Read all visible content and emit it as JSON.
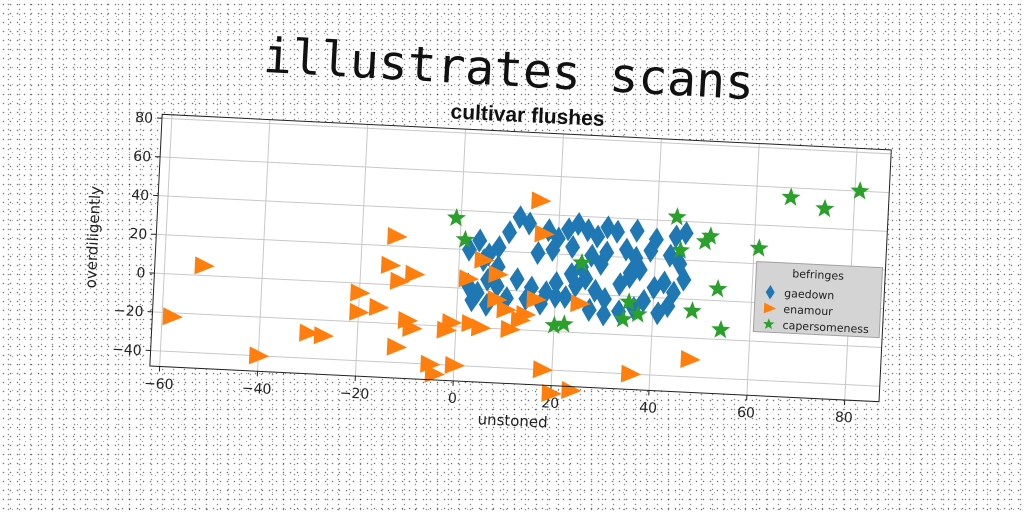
{
  "heading": "illustrates scans",
  "chart_data": {
    "type": "scatter",
    "title": "cultivar flushes",
    "xlabel": "unstoned",
    "ylabel": "overdiligently",
    "xlim": [
      -62,
      87
    ],
    "ylim": [
      -48,
      82
    ],
    "xticks": [
      -60,
      -40,
      -20,
      0,
      20,
      40,
      60,
      80
    ],
    "yticks": [
      -40,
      -20,
      0,
      20,
      40,
      60,
      80
    ],
    "xtick_labels": [
      "−60",
      "−40",
      "−20",
      "0",
      "20",
      "40",
      "60",
      "80"
    ],
    "ytick_labels": [
      "−40",
      "−20",
      "0",
      "20",
      "40",
      "60",
      "80"
    ],
    "grid": true,
    "legend": {
      "title": "befringes",
      "location": "right"
    },
    "series": [
      {
        "name": "gaedown",
        "color": "#1f77b4",
        "marker": "diamond",
        "points": [
          [
            2,
            20
          ],
          [
            4,
            25
          ],
          [
            6,
            18
          ],
          [
            8,
            22
          ],
          [
            10,
            30
          ],
          [
            12,
            38
          ],
          [
            14,
            35
          ],
          [
            18,
            32
          ],
          [
            20,
            28
          ],
          [
            22,
            33
          ],
          [
            24,
            36
          ],
          [
            26,
            33
          ],
          [
            28,
            30
          ],
          [
            30,
            35
          ],
          [
            32,
            33
          ],
          [
            36,
            34
          ],
          [
            40,
            30
          ],
          [
            44,
            32
          ],
          [
            46,
            34
          ],
          [
            5,
            15
          ],
          [
            8,
            12
          ],
          [
            16,
            20
          ],
          [
            19,
            22
          ],
          [
            23,
            24
          ],
          [
            27,
            20
          ],
          [
            30,
            22
          ],
          [
            34,
            24
          ],
          [
            36,
            20
          ],
          [
            39,
            24
          ],
          [
            43,
            22
          ],
          [
            45,
            18
          ],
          [
            2,
            2
          ],
          [
            4,
            -2
          ],
          [
            6,
            5
          ],
          [
            8,
            2
          ],
          [
            10,
            -4
          ],
          [
            12,
            6
          ],
          [
            15,
            2
          ],
          [
            18,
            0
          ],
          [
            20,
            5
          ],
          [
            22,
            -2
          ],
          [
            24,
            4
          ],
          [
            26,
            8
          ],
          [
            28,
            2
          ],
          [
            30,
            -2
          ],
          [
            33,
            6
          ],
          [
            35,
            10
          ],
          [
            37,
            14
          ],
          [
            40,
            5
          ],
          [
            42,
            8
          ],
          [
            44,
            3
          ],
          [
            46,
            10
          ],
          [
            3,
            -6
          ],
          [
            6,
            -8
          ],
          [
            14,
            -4
          ],
          [
            17,
            -6
          ],
          [
            20,
            -2
          ],
          [
            27,
            -8
          ],
          [
            30,
            -10
          ],
          [
            36,
            -6
          ],
          [
            38,
            -2
          ],
          [
            41,
            -8
          ],
          [
            43,
            -4
          ],
          [
            33,
            -8
          ],
          [
            23,
            10
          ],
          [
            25,
            14
          ],
          [
            29,
            16
          ],
          [
            35,
            12
          ]
        ]
      },
      {
        "name": "enamour",
        "color": "#ff7f0e",
        "marker": "triangle-right",
        "points": [
          [
            -52,
            5
          ],
          [
            -58,
            -22
          ],
          [
            -40,
            -40
          ],
          [
            -30,
            -27
          ],
          [
            -27,
            -28
          ],
          [
            -13,
            25
          ],
          [
            -14,
            10
          ],
          [
            -12,
            2
          ],
          [
            -9,
            6
          ],
          [
            -20,
            -5
          ],
          [
            -20,
            -15
          ],
          [
            -16,
            -12
          ],
          [
            -10,
            -18
          ],
          [
            -9,
            -22
          ],
          [
            -12,
            -32
          ],
          [
            -5,
            -40
          ],
          [
            -4,
            -45
          ],
          [
            -2,
            -22
          ],
          [
            -1,
            -18
          ],
          [
            0,
            -40
          ],
          [
            2,
            5
          ],
          [
            3,
            -18
          ],
          [
            5,
            -20
          ],
          [
            5,
            15
          ],
          [
            8,
            8
          ],
          [
            8,
            -5
          ],
          [
            10,
            -10
          ],
          [
            11,
            -20
          ],
          [
            13,
            -15
          ],
          [
            14,
            -12
          ],
          [
            16,
            -4
          ],
          [
            16,
            47
          ],
          [
            17,
            30
          ],
          [
            18,
            -40
          ],
          [
            20,
            -52
          ],
          [
            24,
            -50
          ],
          [
            25,
            -5
          ],
          [
            36,
            -40
          ],
          [
            48,
            -31
          ]
        ]
      },
      {
        "name": "capersomeness",
        "color": "#2ca02c",
        "marker": "star",
        "points": [
          [
            -1,
            36
          ],
          [
            1,
            25
          ],
          [
            20,
            -17
          ],
          [
            22,
            -16
          ],
          [
            25,
            16
          ],
          [
            34,
            -12
          ],
          [
            35,
            -3
          ],
          [
            37,
            -9
          ],
          [
            44,
            42
          ],
          [
            45,
            25
          ],
          [
            48,
            -6
          ],
          [
            50,
            30
          ],
          [
            51,
            33
          ],
          [
            53,
            6
          ],
          [
            54,
            -15
          ],
          [
            61,
            28
          ],
          [
            67,
            55
          ],
          [
            74,
            50
          ],
          [
            81,
            60
          ]
        ]
      }
    ]
  }
}
